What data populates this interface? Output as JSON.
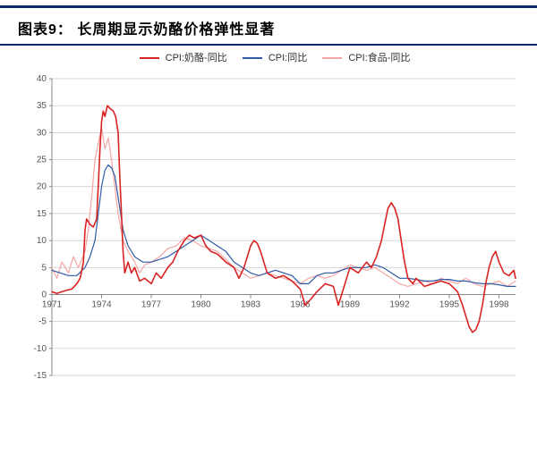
{
  "title": "图表9：   长周期显示奶酪价格弹性显著",
  "legend": [
    {
      "label": "CPI:奶酪-同比",
      "color": "#d92323"
    },
    {
      "label": "CPI:同比",
      "color": "#2f5aa6"
    },
    {
      "label": "CPI:食品-同比",
      "color": "#f4a6a6"
    }
  ],
  "chart": {
    "type": "line",
    "background_color": "#ffffff",
    "grid_color": "#c8c8c8",
    "axes_color": "#888888",
    "title_fontsize": 16,
    "label_fontsize": 10,
    "xlim": [
      1971,
      1999
    ],
    "ylim": [
      -15,
      40
    ],
    "ytick_step": 5,
    "xticks": [
      1971,
      1974,
      1977,
      1980,
      1983,
      1986,
      1989,
      1992,
      1995,
      1998
    ],
    "line_width_main": 1.6,
    "line_width_other": 1.2,
    "series": [
      {
        "name": "cheese",
        "color": "#d92323",
        "width": 1.6,
        "points": [
          [
            1971.0,
            0.5
          ],
          [
            1971.3,
            0.2
          ],
          [
            1971.6,
            0.5
          ],
          [
            1971.9,
            0.8
          ],
          [
            1972.2,
            1.0
          ],
          [
            1972.5,
            2.0
          ],
          [
            1972.7,
            3.0
          ],
          [
            1972.9,
            6.0
          ],
          [
            1973.0,
            12.0
          ],
          [
            1973.1,
            14.0
          ],
          [
            1973.3,
            13.0
          ],
          [
            1973.5,
            12.5
          ],
          [
            1973.7,
            14.0
          ],
          [
            1973.8,
            20.0
          ],
          [
            1973.9,
            27.0
          ],
          [
            1974.0,
            32.0
          ],
          [
            1974.1,
            34.0
          ],
          [
            1974.2,
            33.0
          ],
          [
            1974.35,
            35.0
          ],
          [
            1974.5,
            34.5
          ],
          [
            1974.7,
            34.0
          ],
          [
            1974.85,
            33.0
          ],
          [
            1975.0,
            30.0
          ],
          [
            1975.1,
            22.0
          ],
          [
            1975.2,
            15.0
          ],
          [
            1975.3,
            8.0
          ],
          [
            1975.4,
            4.0
          ],
          [
            1975.6,
            6.0
          ],
          [
            1975.8,
            4.0
          ],
          [
            1976.0,
            5.0
          ],
          [
            1976.3,
            2.5
          ],
          [
            1976.6,
            3.0
          ],
          [
            1977.0,
            2.0
          ],
          [
            1977.3,
            4.0
          ],
          [
            1977.6,
            3.0
          ],
          [
            1978.0,
            5.0
          ],
          [
            1978.3,
            6.0
          ],
          [
            1978.6,
            8.0
          ],
          [
            1979.0,
            10.0
          ],
          [
            1979.3,
            11.0
          ],
          [
            1979.6,
            10.5
          ],
          [
            1980.0,
            11.0
          ],
          [
            1980.3,
            9.0
          ],
          [
            1980.6,
            8.0
          ],
          [
            1981.0,
            7.5
          ],
          [
            1981.5,
            6.0
          ],
          [
            1982.0,
            5.0
          ],
          [
            1982.3,
            3.0
          ],
          [
            1982.6,
            5.0
          ],
          [
            1983.0,
            9.0
          ],
          [
            1983.2,
            10.0
          ],
          [
            1983.4,
            9.5
          ],
          [
            1983.6,
            8.0
          ],
          [
            1984.0,
            4.0
          ],
          [
            1984.5,
            3.0
          ],
          [
            1985.0,
            3.5
          ],
          [
            1985.5,
            2.5
          ],
          [
            1986.0,
            1.0
          ],
          [
            1986.3,
            -2.0
          ],
          [
            1986.6,
            -1.0
          ],
          [
            1987.0,
            0.5
          ],
          [
            1987.5,
            2.0
          ],
          [
            1988.0,
            1.5
          ],
          [
            1988.3,
            -2.0
          ],
          [
            1988.6,
            1.0
          ],
          [
            1989.0,
            5.0
          ],
          [
            1989.5,
            4.0
          ],
          [
            1990.0,
            6.0
          ],
          [
            1990.3,
            5.0
          ],
          [
            1990.6,
            7.0
          ],
          [
            1990.9,
            10.0
          ],
          [
            1991.1,
            13.0
          ],
          [
            1991.3,
            16.0
          ],
          [
            1991.5,
            17.0
          ],
          [
            1991.7,
            16.0
          ],
          [
            1991.9,
            14.0
          ],
          [
            1992.1,
            10.0
          ],
          [
            1992.3,
            6.0
          ],
          [
            1992.5,
            3.0
          ],
          [
            1992.8,
            2.0
          ],
          [
            1993.0,
            3.0
          ],
          [
            1993.5,
            1.5
          ],
          [
            1994.0,
            2.0
          ],
          [
            1994.5,
            2.5
          ],
          [
            1995.0,
            2.0
          ],
          [
            1995.5,
            0.5
          ],
          [
            1995.8,
            -2.0
          ],
          [
            1996.0,
            -4.0
          ],
          [
            1996.2,
            -6.0
          ],
          [
            1996.4,
            -7.0
          ],
          [
            1996.6,
            -6.5
          ],
          [
            1996.8,
            -5.0
          ],
          [
            1997.0,
            -2.0
          ],
          [
            1997.2,
            2.0
          ],
          [
            1997.4,
            5.0
          ],
          [
            1997.6,
            7.0
          ],
          [
            1997.8,
            8.0
          ],
          [
            1998.0,
            6.0
          ],
          [
            1998.3,
            4.0
          ],
          [
            1998.6,
            3.5
          ],
          [
            1998.9,
            4.5
          ],
          [
            1999.0,
            3.0
          ]
        ]
      },
      {
        "name": "cpi",
        "color": "#2f5aa6",
        "width": 1.2,
        "points": [
          [
            1971.0,
            4.5
          ],
          [
            1971.5,
            4.0
          ],
          [
            1972.0,
            3.5
          ],
          [
            1972.5,
            3.5
          ],
          [
            1973.0,
            5.0
          ],
          [
            1973.3,
            7.0
          ],
          [
            1973.6,
            10.0
          ],
          [
            1973.8,
            15.0
          ],
          [
            1974.0,
            20.0
          ],
          [
            1974.2,
            23.0
          ],
          [
            1974.4,
            24.0
          ],
          [
            1974.6,
            23.5
          ],
          [
            1974.8,
            22.0
          ],
          [
            1975.0,
            18.0
          ],
          [
            1975.3,
            12.0
          ],
          [
            1975.6,
            9.0
          ],
          [
            1976.0,
            7.0
          ],
          [
            1976.5,
            6.0
          ],
          [
            1977.0,
            6.0
          ],
          [
            1977.5,
            6.5
          ],
          [
            1978.0,
            7.0
          ],
          [
            1978.5,
            8.0
          ],
          [
            1979.0,
            9.0
          ],
          [
            1979.5,
            10.0
          ],
          [
            1980.0,
            11.0
          ],
          [
            1980.5,
            10.0
          ],
          [
            1981.0,
            9.0
          ],
          [
            1981.5,
            8.0
          ],
          [
            1982.0,
            6.0
          ],
          [
            1982.5,
            5.0
          ],
          [
            1983.0,
            4.0
          ],
          [
            1983.5,
            3.5
          ],
          [
            1984.0,
            4.0
          ],
          [
            1984.5,
            4.5
          ],
          [
            1985.0,
            4.0
          ],
          [
            1985.5,
            3.5
          ],
          [
            1986.0,
            2.0
          ],
          [
            1986.5,
            2.0
          ],
          [
            1987.0,
            3.5
          ],
          [
            1987.5,
            4.0
          ],
          [
            1988.0,
            4.0
          ],
          [
            1988.5,
            4.5
          ],
          [
            1989.0,
            5.0
          ],
          [
            1989.5,
            5.0
          ],
          [
            1990.0,
            5.0
          ],
          [
            1990.5,
            5.5
          ],
          [
            1991.0,
            5.0
          ],
          [
            1991.5,
            4.0
          ],
          [
            1992.0,
            3.0
          ],
          [
            1992.5,
            3.0
          ],
          [
            1993.0,
            2.8
          ],
          [
            1993.5,
            2.5
          ],
          [
            1994.0,
            2.5
          ],
          [
            1994.5,
            2.8
          ],
          [
            1995.0,
            2.8
          ],
          [
            1995.5,
            2.5
          ],
          [
            1996.0,
            2.5
          ],
          [
            1996.5,
            2.2
          ],
          [
            1997.0,
            2.0
          ],
          [
            1997.5,
            2.0
          ],
          [
            1998.0,
            1.8
          ],
          [
            1998.5,
            1.5
          ],
          [
            1999.0,
            1.5
          ]
        ]
      },
      {
        "name": "food",
        "color": "#f4a6a6",
        "width": 1.2,
        "points": [
          [
            1971.0,
            5.0
          ],
          [
            1971.3,
            3.0
          ],
          [
            1971.6,
            6.0
          ],
          [
            1972.0,
            4.0
          ],
          [
            1972.3,
            7.0
          ],
          [
            1972.6,
            5.0
          ],
          [
            1973.0,
            8.0
          ],
          [
            1973.2,
            12.0
          ],
          [
            1973.4,
            18.0
          ],
          [
            1973.6,
            25.0
          ],
          [
            1973.8,
            28.0
          ],
          [
            1974.0,
            31.0
          ],
          [
            1974.2,
            27.0
          ],
          [
            1974.4,
            29.0
          ],
          [
            1974.6,
            25.0
          ],
          [
            1974.8,
            20.0
          ],
          [
            1975.0,
            15.0
          ],
          [
            1975.3,
            10.0
          ],
          [
            1975.6,
            8.0
          ],
          [
            1976.0,
            6.0
          ],
          [
            1976.3,
            4.0
          ],
          [
            1976.6,
            5.5
          ],
          [
            1977.0,
            6.0
          ],
          [
            1977.5,
            7.0
          ],
          [
            1978.0,
            8.5
          ],
          [
            1978.5,
            9.0
          ],
          [
            1979.0,
            10.5
          ],
          [
            1979.5,
            10.0
          ],
          [
            1980.0,
            9.0
          ],
          [
            1980.5,
            8.5
          ],
          [
            1981.0,
            8.0
          ],
          [
            1981.5,
            6.5
          ],
          [
            1982.0,
            5.0
          ],
          [
            1982.5,
            4.0
          ],
          [
            1983.0,
            3.0
          ],
          [
            1983.5,
            3.5
          ],
          [
            1984.0,
            4.0
          ],
          [
            1984.5,
            3.5
          ],
          [
            1985.0,
            3.0
          ],
          [
            1985.5,
            2.5
          ],
          [
            1986.0,
            2.0
          ],
          [
            1986.5,
            3.0
          ],
          [
            1987.0,
            3.5
          ],
          [
            1987.5,
            3.0
          ],
          [
            1988.0,
            3.5
          ],
          [
            1988.5,
            4.5
          ],
          [
            1989.0,
            5.5
          ],
          [
            1989.5,
            5.0
          ],
          [
            1990.0,
            4.5
          ],
          [
            1990.5,
            5.0
          ],
          [
            1991.0,
            4.0
          ],
          [
            1991.5,
            3.0
          ],
          [
            1992.0,
            2.0
          ],
          [
            1992.5,
            1.5
          ],
          [
            1993.0,
            2.0
          ],
          [
            1993.5,
            2.5
          ],
          [
            1994.0,
            2.0
          ],
          [
            1994.5,
            3.0
          ],
          [
            1995.0,
            2.5
          ],
          [
            1995.5,
            2.0
          ],
          [
            1996.0,
            3.0
          ],
          [
            1996.5,
            2.0
          ],
          [
            1997.0,
            1.5
          ],
          [
            1997.5,
            2.0
          ],
          [
            1998.0,
            2.5
          ],
          [
            1998.5,
            1.5
          ],
          [
            1999.0,
            2.5
          ]
        ]
      }
    ]
  }
}
